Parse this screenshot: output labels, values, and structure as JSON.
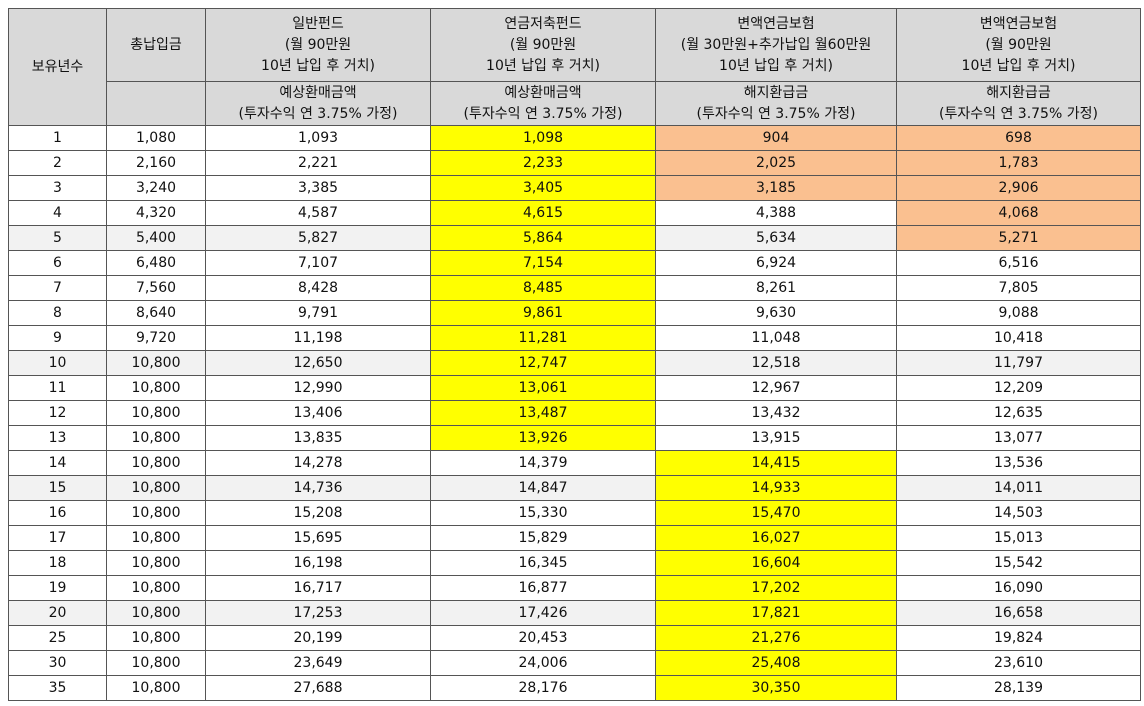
{
  "headers": {
    "years": "보유년수",
    "total": "총납입금",
    "fund": [
      "일반펀드",
      "(월 90만원",
      "10년 납입 후 거치)"
    ],
    "pension_fund": [
      "연금저축펀드",
      "(월 90만원",
      "10년 납입 후 거치)"
    ],
    "vul_a": [
      "변액연금보험",
      "(월 30만원+추가납입 월60만원",
      "10년 납입 후 거치)"
    ],
    "vul_b": [
      "변액연금보험",
      "(월 90만원",
      "10년 납입 후 거치)"
    ],
    "sub_refund": [
      "예상환매금액",
      "(투자수익 연 3.75% 가정)"
    ],
    "sub_surrender": [
      "해지환급금",
      "(투자수익 연 3.75% 가정)"
    ]
  },
  "colors": {
    "header_bg": "#d9d9d9",
    "highlight_yellow": "#ffff00",
    "highlight_orange": "#fac090",
    "alt_row": "#f2f2f2"
  },
  "rows": [
    {
      "year": "1",
      "total": "1,080",
      "fund": "1,093",
      "pension": "1,098",
      "vul_a": "904",
      "vul_b": "698",
      "hl": [
        "y",
        "o",
        "o"
      ]
    },
    {
      "year": "2",
      "total": "2,160",
      "fund": "2,221",
      "pension": "2,233",
      "vul_a": "2,025",
      "vul_b": "1,783",
      "hl": [
        "y",
        "o",
        "o"
      ]
    },
    {
      "year": "3",
      "total": "3,240",
      "fund": "3,385",
      "pension": "3,405",
      "vul_a": "3,185",
      "vul_b": "2,906",
      "hl": [
        "y",
        "o",
        "o"
      ]
    },
    {
      "year": "4",
      "total": "4,320",
      "fund": "4,587",
      "pension": "4,615",
      "vul_a": "4,388",
      "vul_b": "4,068",
      "hl": [
        "y",
        "",
        "o"
      ]
    },
    {
      "year": "5",
      "total": "5,400",
      "fund": "5,827",
      "pension": "5,864",
      "vul_a": "5,634",
      "vul_b": "5,271",
      "hl": [
        "y",
        "",
        "o"
      ],
      "alt": true
    },
    {
      "year": "6",
      "total": "6,480",
      "fund": "7,107",
      "pension": "7,154",
      "vul_a": "6,924",
      "vul_b": "6,516",
      "hl": [
        "y",
        "",
        ""
      ]
    },
    {
      "year": "7",
      "total": "7,560",
      "fund": "8,428",
      "pension": "8,485",
      "vul_a": "8,261",
      "vul_b": "7,805",
      "hl": [
        "y",
        "",
        ""
      ]
    },
    {
      "year": "8",
      "total": "8,640",
      "fund": "9,791",
      "pension": "9,861",
      "vul_a": "9,630",
      "vul_b": "9,088",
      "hl": [
        "y",
        "",
        ""
      ]
    },
    {
      "year": "9",
      "total": "9,720",
      "fund": "11,198",
      "pension": "11,281",
      "vul_a": "11,048",
      "vul_b": "10,418",
      "hl": [
        "y",
        "",
        ""
      ]
    },
    {
      "year": "10",
      "total": "10,800",
      "fund": "12,650",
      "pension": "12,747",
      "vul_a": "12,518",
      "vul_b": "11,797",
      "hl": [
        "y",
        "",
        ""
      ],
      "alt": true
    },
    {
      "year": "11",
      "total": "10,800",
      "fund": "12,990",
      "pension": "13,061",
      "vul_a": "12,967",
      "vul_b": "12,209",
      "hl": [
        "y",
        "",
        ""
      ]
    },
    {
      "year": "12",
      "total": "10,800",
      "fund": "13,406",
      "pension": "13,487",
      "vul_a": "13,432",
      "vul_b": "12,635",
      "hl": [
        "y",
        "",
        ""
      ]
    },
    {
      "year": "13",
      "total": "10,800",
      "fund": "13,835",
      "pension": "13,926",
      "vul_a": "13,915",
      "vul_b": "13,077",
      "hl": [
        "y",
        "",
        ""
      ]
    },
    {
      "year": "14",
      "total": "10,800",
      "fund": "14,278",
      "pension": "14,379",
      "vul_a": "14,415",
      "vul_b": "13,536",
      "hl": [
        "",
        "y",
        ""
      ]
    },
    {
      "year": "15",
      "total": "10,800",
      "fund": "14,736",
      "pension": "14,847",
      "vul_a": "14,933",
      "vul_b": "14,011",
      "hl": [
        "",
        "y",
        ""
      ],
      "alt": true
    },
    {
      "year": "16",
      "total": "10,800",
      "fund": "15,208",
      "pension": "15,330",
      "vul_a": "15,470",
      "vul_b": "14,503",
      "hl": [
        "",
        "y",
        ""
      ]
    },
    {
      "year": "17",
      "total": "10,800",
      "fund": "15,695",
      "pension": "15,829",
      "vul_a": "16,027",
      "vul_b": "15,013",
      "hl": [
        "",
        "y",
        ""
      ]
    },
    {
      "year": "18",
      "total": "10,800",
      "fund": "16,198",
      "pension": "16,345",
      "vul_a": "16,604",
      "vul_b": "15,542",
      "hl": [
        "",
        "y",
        ""
      ]
    },
    {
      "year": "19",
      "total": "10,800",
      "fund": "16,717",
      "pension": "16,877",
      "vul_a": "17,202",
      "vul_b": "16,090",
      "hl": [
        "",
        "y",
        ""
      ]
    },
    {
      "year": "20",
      "total": "10,800",
      "fund": "17,253",
      "pension": "17,426",
      "vul_a": "17,821",
      "vul_b": "16,658",
      "hl": [
        "",
        "y",
        ""
      ],
      "alt": true
    },
    {
      "year": "25",
      "total": "10,800",
      "fund": "20,199",
      "pension": "20,453",
      "vul_a": "21,276",
      "vul_b": "19,824",
      "hl": [
        "",
        "y",
        ""
      ]
    },
    {
      "year": "30",
      "total": "10,800",
      "fund": "23,649",
      "pension": "24,006",
      "vul_a": "25,408",
      "vul_b": "23,610",
      "hl": [
        "",
        "y",
        ""
      ]
    },
    {
      "year": "35",
      "total": "10,800",
      "fund": "27,688",
      "pension": "28,176",
      "vul_a": "30,350",
      "vul_b": "28,139",
      "hl": [
        "",
        "y",
        ""
      ]
    }
  ]
}
